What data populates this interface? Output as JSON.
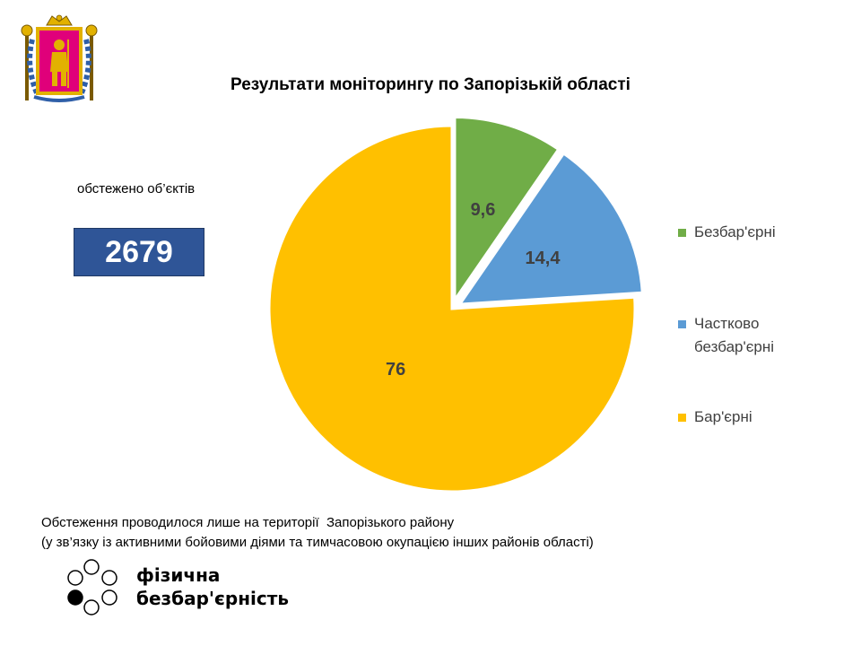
{
  "title": "Результати моніторингу по Запорізькій області",
  "summary": {
    "label": "обстежено об’єктів",
    "value": "2679"
  },
  "chart_data": {
    "type": "pie",
    "title": "Результати моніторингу по Запорізькій області",
    "categories": [
      "Безбар'єрні",
      "Частково безбар'єрні",
      "Бар'єрні"
    ],
    "values": [
      9.6,
      14.4,
      76
    ],
    "value_labels": [
      "9,6",
      "14,4",
      "76"
    ],
    "colors": [
      "#70ad47",
      "#5b9bd5",
      "#ffc000"
    ],
    "legend_position": "right",
    "exploded_slices": [
      "Безбар'єрні",
      "Частково безбар'єрні"
    ]
  },
  "legend": {
    "items": [
      {
        "label": "Безбар'єрні",
        "color": "#70ad47"
      },
      {
        "label": "Частково\nбезбар'єрні",
        "color": "#5b9bd5"
      },
      {
        "label": "Бар'єрні",
        "color": "#ffc000"
      }
    ]
  },
  "footnote": {
    "line1": "Обстеження проводилося лише на території  Запорізького району",
    "line2": "(у зв’язку із активними бойовими діями та тимчасовою окупацією інших районів області)"
  },
  "brand": {
    "line1": "фізична",
    "line2": "безбар'єрність"
  },
  "icons": {
    "crest": "zaporizhzhia-oblast-coat-of-arms-icon",
    "logo": "barrier-free-dots-logo-icon"
  }
}
